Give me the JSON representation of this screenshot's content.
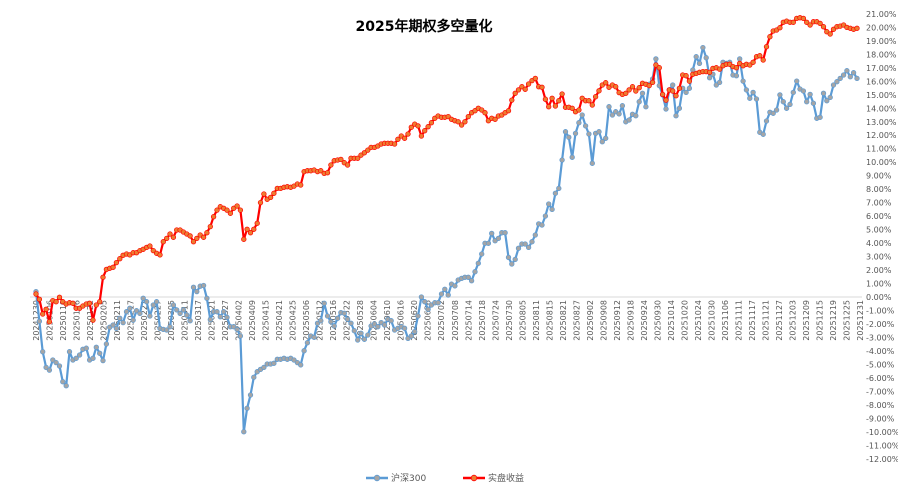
{
  "chart_data": {
    "type": "line",
    "title": "2025年期权多空量化",
    "xlabel": "",
    "ylabel": "",
    "ylim": [
      -12,
      21
    ],
    "y_tick_step": 1,
    "y_tick_format": "percent-2dp",
    "y_axis_side": "right",
    "grid": false,
    "zero_line": true,
    "legend_position": "bottom",
    "x_tick_labels": [
      "20241230",
      "20250106",
      "20250110",
      "20250116",
      "20250122",
      "20250205",
      "20250211",
      "20250217",
      "20250221",
      "20250227",
      "20250305",
      "20250311",
      "20250317",
      "20250321",
      "20250327",
      "20250402",
      "20250409",
      "20250415",
      "20250421",
      "20250425",
      "20250506",
      "20250512",
      "20250516",
      "20250522",
      "20250528",
      "20250604",
      "20250610",
      "20250616",
      "20250620",
      "20250626",
      "20250702",
      "20250708",
      "20250714",
      "20250718",
      "20250724",
      "20250730",
      "20250805",
      "20250811",
      "20250815",
      "20250821",
      "20250827",
      "20250902",
      "20250908",
      "20250912",
      "20250918",
      "20250924",
      "20250930",
      "20251014",
      "20251020",
      "20251024",
      "20251030",
      "20251106",
      "20251111",
      "20251117",
      "20251121",
      "20251127",
      "20251203",
      "20251209",
      "20251215",
      "20251219",
      "20251225",
      "20251231"
    ],
    "series": [
      {
        "name": "沪深300",
        "color": "#5B9BD5",
        "marker_color": "#A5A5A5",
        "values": [
          0.4,
          -1.8,
          -4.06,
          -5.22,
          -5.42,
          -4.67,
          -4.87,
          -5.12,
          -6.28,
          -6.58,
          -4.06,
          -4.67,
          -4.55,
          -4.3,
          -3.88,
          -3.8,
          -4.67,
          -4.55,
          -3.73,
          -4.18,
          -4.72,
          -3.49,
          -2.25,
          -2.08,
          -2.33,
          -1.58,
          -1.9,
          -1.09,
          -0.84,
          -1.71,
          -1.02,
          -1.22,
          -0.1,
          -0.35,
          -1.41,
          -0.59,
          -0.35,
          -2.33,
          -2.4,
          -2.45,
          -2.2,
          -0.59,
          -0.96,
          -1.22,
          -0.96,
          -1.34,
          -1.76,
          0.72,
          0.4,
          0.8,
          0.85,
          -0.1,
          -1.68,
          -1.09,
          -1.09,
          -1.46,
          -1.09,
          -1.51,
          -2.2,
          -2.2,
          -2.4,
          -2.89,
          -9.99,
          -8.26,
          -7.27,
          -5.96,
          -5.54,
          -5.37,
          -5.22,
          -4.97,
          -4.97,
          -4.92,
          -4.62,
          -4.62,
          -4.55,
          -4.62,
          -4.55,
          -4.67,
          -4.87,
          -5.04,
          -3.98,
          -3.39,
          -2.89,
          -2.99,
          -1.95,
          -1.76,
          -0.47,
          -1.41,
          -1.83,
          -2.15,
          -1.58,
          -1.16,
          -1.21,
          -1.65,
          -1.95,
          -2.5,
          -3.19,
          -2.69,
          -3.14,
          -2.82,
          -2.15,
          -2.0,
          -2.2,
          -1.9,
          -2.08,
          -1.65,
          -1.76,
          -2.45,
          -2.32,
          -2.2,
          -2.32,
          -3.07,
          -2.89,
          -2.57,
          -1.41,
          0.0,
          -0.35,
          -0.91,
          -0.59,
          -0.42,
          -0.42,
          0.22,
          0.57,
          0.15,
          0.96,
          0.82,
          1.26,
          1.38,
          1.46,
          1.46,
          1.21,
          1.88,
          2.5,
          3.19,
          3.98,
          3.98,
          4.72,
          4.18,
          4.35,
          4.77,
          4.77,
          2.94,
          2.45,
          2.79,
          3.61,
          3.93,
          3.93,
          3.68,
          4.1,
          4.6,
          5.42,
          5.34,
          6.01,
          6.9,
          6.5,
          7.69,
          8.06,
          10.16,
          12.26,
          11.85,
          10.36,
          12.14,
          12.93,
          13.5,
          12.69,
          12.09,
          9.92,
          12.14,
          12.26,
          11.52,
          11.77,
          14.12,
          13.5,
          13.75,
          13.58,
          14.19,
          13.0,
          13.13,
          13.55,
          13.45,
          14.49,
          15.11,
          14.12,
          15.78,
          16.17,
          17.66,
          15.68,
          14.99,
          13.95,
          15.36,
          15.73,
          13.45,
          14.0,
          15.48,
          15.18,
          15.48,
          16.84,
          17.83,
          17.33,
          18.5,
          17.75,
          16.27,
          16.52,
          15.73,
          15.92,
          17.41,
          17.33,
          17.41,
          16.47,
          16.42,
          17.66,
          16.02,
          15.36,
          14.74,
          15.18,
          14.69,
          12.22,
          12.07,
          13.06,
          13.7,
          13.63,
          13.87,
          14.99,
          14.49,
          14.0,
          14.29,
          15.18,
          16.02,
          15.43,
          15.28,
          14.49,
          15.03,
          14.37,
          13.26,
          13.33,
          15.11,
          14.56,
          14.81,
          15.73,
          15.97,
          16.22,
          16.47,
          16.79,
          16.34,
          16.64,
          16.22
        ]
      },
      {
        "name": "实盘收益",
        "color": "#FF0000",
        "marker_color": "#ED7D31",
        "values": [
          0.22,
          -0.17,
          -1.26,
          -0.91,
          -1.83,
          -0.27,
          -0.35,
          -0.02,
          -0.35,
          -0.52,
          -0.42,
          -0.47,
          -0.84,
          -0.84,
          -0.67,
          -0.52,
          -0.47,
          -1.71,
          -0.59,
          -0.35,
          1.46,
          2.05,
          2.13,
          2.2,
          2.55,
          2.84,
          3.09,
          3.19,
          3.12,
          3.29,
          3.29,
          3.44,
          3.54,
          3.68,
          3.78,
          3.44,
          3.24,
          3.12,
          4.1,
          4.35,
          4.67,
          4.43,
          4.97,
          4.97,
          4.82,
          4.67,
          4.53,
          4.1,
          4.35,
          4.6,
          4.43,
          4.77,
          5.22,
          5.96,
          6.45,
          6.7,
          6.58,
          6.45,
          6.21,
          6.58,
          6.75,
          6.45,
          4.28,
          5.02,
          4.77,
          5.02,
          5.47,
          7.0,
          7.64,
          7.25,
          7.39,
          7.69,
          8.06,
          8.06,
          8.14,
          8.18,
          8.14,
          8.23,
          8.38,
          8.31,
          9.3,
          9.37,
          9.37,
          9.42,
          9.3,
          9.37,
          9.17,
          9.22,
          9.79,
          10.11,
          10.16,
          10.21,
          9.96,
          9.79,
          10.29,
          10.29,
          10.29,
          10.53,
          10.7,
          10.9,
          11.1,
          11.1,
          11.2,
          11.35,
          11.4,
          11.4,
          11.4,
          11.35,
          11.7,
          11.94,
          11.77,
          12.09,
          12.59,
          12.83,
          12.69,
          11.94,
          12.34,
          12.63,
          12.93,
          13.26,
          13.43,
          13.33,
          13.33,
          13.38,
          13.18,
          13.08,
          13.0,
          12.76,
          13.0,
          13.38,
          13.67,
          13.82,
          14.0,
          13.87,
          13.67,
          13.08,
          13.26,
          13.18,
          13.43,
          13.5,
          13.67,
          13.82,
          14.61,
          15.11,
          15.36,
          15.6,
          15.41,
          15.8,
          16.05,
          16.22,
          15.6,
          15.56,
          14.67,
          14.12,
          14.74,
          14.17,
          14.56,
          15.06,
          14.07,
          14.07,
          14.0,
          13.75,
          13.87,
          14.74,
          14.56,
          14.56,
          14.24,
          14.86,
          15.3,
          15.73,
          15.9,
          15.56,
          15.73,
          15.6,
          15.16,
          15.03,
          15.11,
          15.36,
          15.6,
          15.28,
          15.53,
          15.85,
          15.78,
          15.68,
          15.92,
          17.21,
          17.01,
          15.03,
          14.61,
          15.36,
          15.28,
          14.93,
          15.48,
          16.47,
          16.42,
          16.02,
          16.52,
          16.59,
          16.67,
          16.72,
          16.72,
          16.67,
          16.96,
          17.01,
          16.91,
          17.16,
          17.26,
          17.26,
          17.09,
          17.01,
          17.33,
          17.16,
          17.26,
          17.21,
          17.41,
          17.83,
          17.9,
          17.58,
          18.57,
          19.31,
          19.73,
          19.81,
          19.98,
          20.38,
          20.47,
          20.38,
          20.38,
          20.67,
          20.72,
          20.67,
          20.38,
          20.18,
          20.42,
          20.42,
          20.3,
          20.05,
          19.68,
          19.51,
          19.86,
          20.05,
          20.1,
          20.18,
          20.0,
          19.93,
          19.86,
          19.93
        ]
      }
    ]
  }
}
